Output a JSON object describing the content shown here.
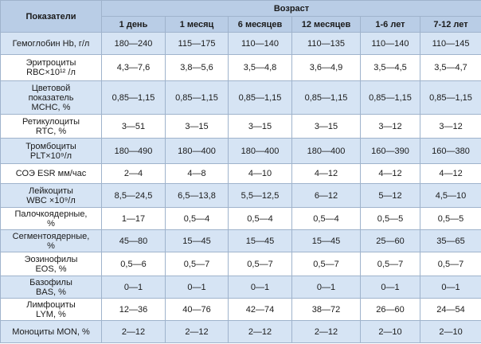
{
  "header": {
    "indicator": "Показатели",
    "age": "Возраст",
    "columns": [
      "1 день",
      "1 месяц",
      "6 месяцев",
      "12 месяцев",
      "1-6 лет",
      "7-12 лет"
    ]
  },
  "rows": [
    {
      "label": [
        "Гемоглобин Hb, г/л"
      ],
      "values": [
        "180—240",
        "115—175",
        "110—140",
        "110—135",
        "110—140",
        "110—145"
      ]
    },
    {
      "label": [
        "Эритроциты",
        "RBC×10¹² /л"
      ],
      "values": [
        "4,3—7,6",
        "3,8—5,6",
        "3,5—4,8",
        "3,6—4,9",
        "3,5—4,5",
        "3,5—4,7"
      ]
    },
    {
      "label": [
        "Цветовой",
        "показатель",
        "MCHC, %"
      ],
      "values": [
        "0,85—1,15",
        "0,85—1,15",
        "0,85—1,15",
        "0,85—1,15",
        "0,85—1,15",
        "0,85—1,15"
      ]
    },
    {
      "label": [
        "Ретикулоциты",
        "RTC, %"
      ],
      "values": [
        "3—51",
        "3—15",
        "3—15",
        "3—15",
        "3—12",
        "3—12"
      ]
    },
    {
      "label": [
        "Тромбоциты",
        "PLT×10⁹/л"
      ],
      "values": [
        "180—490",
        "180—400",
        "180—400",
        "180—400",
        "160—390",
        "160—380"
      ]
    },
    {
      "label": [
        "СОЭ ESR мм/час"
      ],
      "values": [
        "2—4",
        "4—8",
        "4—10",
        "4—12",
        "4—12",
        "4—12"
      ]
    },
    {
      "label": [
        "Лейкоциты",
        "WBC ×10⁹/л"
      ],
      "values": [
        "8,5—24,5",
        "6,5—13,8",
        "5,5—12,5",
        "6—12",
        "5—12",
        "4,5—10"
      ]
    },
    {
      "label": [
        "Палочкоядерные,",
        "%"
      ],
      "values": [
        "1—17",
        "0,5—4",
        "0,5—4",
        "0,5—4",
        "0,5—5",
        "0,5—5"
      ]
    },
    {
      "label": [
        "Сегментоядерные,",
        "%"
      ],
      "values": [
        "45—80",
        "15—45",
        "15—45",
        "15—45",
        "25—60",
        "35—65"
      ]
    },
    {
      "label": [
        "Эозинофилы",
        "EOS, %"
      ],
      "values": [
        "0,5—6",
        "0,5—7",
        "0,5—7",
        "0,5—7",
        "0,5—7",
        "0,5—7"
      ]
    },
    {
      "label": [
        "Базофилы",
        "BAS, %"
      ],
      "values": [
        "0—1",
        "0—1",
        "0—1",
        "0—1",
        "0—1",
        "0—1"
      ]
    },
    {
      "label": [
        "Лимфоциты",
        "LYM, %"
      ],
      "values": [
        "12—36",
        "40—76",
        "42—74",
        "38—72",
        "26—60",
        "24—54"
      ]
    },
    {
      "label": [
        "Моноциты MON, %"
      ],
      "values": [
        "2—12",
        "2—12",
        "2—12",
        "2—12",
        "2—10",
        "2—10"
      ]
    }
  ]
}
